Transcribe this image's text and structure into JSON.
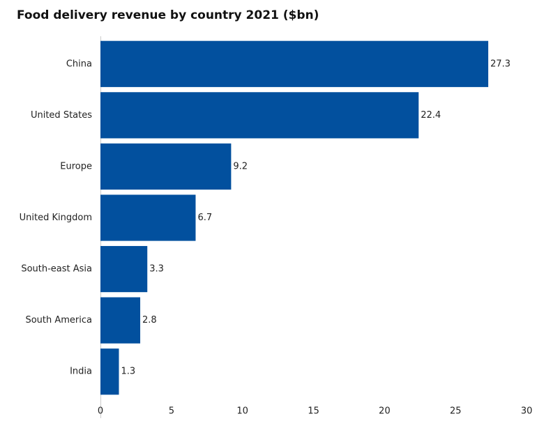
{
  "chart_data": {
    "type": "bar",
    "orientation": "horizontal",
    "title": "Food delivery revenue by country 2021 ($bn)",
    "categories": [
      "China",
      "United States",
      "Europe",
      "United Kingdom",
      "South-east Asia",
      "South America",
      "India"
    ],
    "values": [
      27.3,
      22.4,
      9.2,
      6.7,
      3.3,
      2.8,
      1.3
    ],
    "color": "#02509e",
    "xlim": [
      0,
      30
    ],
    "xticks": [
      0,
      5,
      10,
      15,
      20,
      25,
      30
    ],
    "grid": false
  }
}
